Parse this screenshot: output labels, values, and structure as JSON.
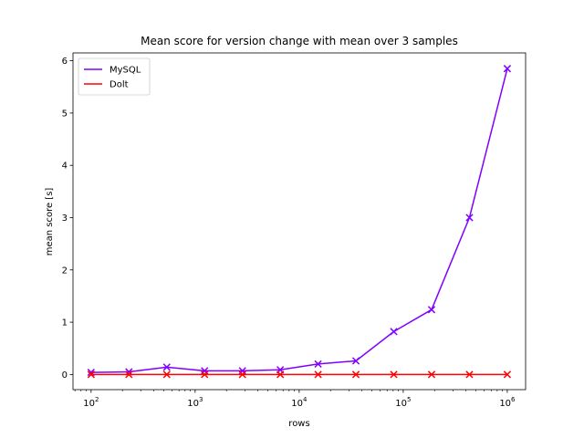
{
  "chart_data": {
    "type": "line",
    "title": "Mean score for version change with mean over 3 samples",
    "xlabel": "rows",
    "ylabel": "mean score [s]",
    "xscale": "log",
    "xlim": [
      67,
      1500000
    ],
    "ylim": [
      -0.29,
      6.15
    ],
    "grid": false,
    "legend": "top-left",
    "x": [
      100,
      231,
      534,
      1233,
      2848,
      6579,
      15199,
      35111,
      81113,
      187382,
      432876,
      1000000
    ],
    "xticks": [
      {
        "value": 100,
        "base": "10",
        "exp": "2"
      },
      {
        "value": 1000,
        "base": "10",
        "exp": "3"
      },
      {
        "value": 10000,
        "base": "10",
        "exp": "4"
      },
      {
        "value": 100000,
        "base": "10",
        "exp": "5"
      },
      {
        "value": 1000000,
        "base": "10",
        "exp": "6"
      }
    ],
    "yticks": [
      "0",
      "1",
      "2",
      "3",
      "4",
      "5",
      "6"
    ],
    "series": [
      {
        "name": "MySQL",
        "color": "#7f00ff",
        "marker": "x",
        "values": [
          0.04,
          0.05,
          0.14,
          0.07,
          0.07,
          0.09,
          0.2,
          0.26,
          0.82,
          1.24,
          3.0,
          5.85
        ]
      },
      {
        "name": "Dolt",
        "color": "#ff0000",
        "marker": "x",
        "values": [
          0.0,
          0.0,
          0.0,
          0.0,
          0.0,
          0.0,
          0.0,
          0.0,
          0.0,
          0.0,
          0.0,
          0.0
        ]
      }
    ]
  }
}
